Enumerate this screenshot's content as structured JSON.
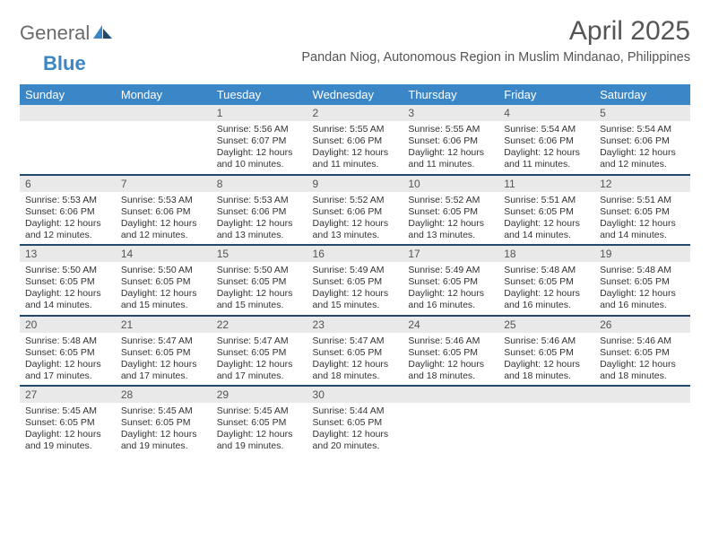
{
  "brand": {
    "part1": "General",
    "part2": "Blue",
    "icon_color": "#234a6d"
  },
  "title": "April 2025",
  "location": "Pandan Niog, Autonomous Region in Muslim Mindanao, Philippines",
  "colors": {
    "header_bg": "#3b86c6",
    "header_fg": "#ffffff",
    "daynum_bg": "#e9e9e9",
    "rule": "#234a6d",
    "text": "#333333"
  },
  "dow": [
    "Sunday",
    "Monday",
    "Tuesday",
    "Wednesday",
    "Thursday",
    "Friday",
    "Saturday"
  ],
  "weeks": [
    [
      null,
      null,
      {
        "n": "1",
        "sr": "5:56 AM",
        "ss": "6:07 PM",
        "d1": "12 hours",
        "d2": "and 10 minutes."
      },
      {
        "n": "2",
        "sr": "5:55 AM",
        "ss": "6:06 PM",
        "d1": "12 hours",
        "d2": "and 11 minutes."
      },
      {
        "n": "3",
        "sr": "5:55 AM",
        "ss": "6:06 PM",
        "d1": "12 hours",
        "d2": "and 11 minutes."
      },
      {
        "n": "4",
        "sr": "5:54 AM",
        "ss": "6:06 PM",
        "d1": "12 hours",
        "d2": "and 11 minutes."
      },
      {
        "n": "5",
        "sr": "5:54 AM",
        "ss": "6:06 PM",
        "d1": "12 hours",
        "d2": "and 12 minutes."
      }
    ],
    [
      {
        "n": "6",
        "sr": "5:53 AM",
        "ss": "6:06 PM",
        "d1": "12 hours",
        "d2": "and 12 minutes."
      },
      {
        "n": "7",
        "sr": "5:53 AM",
        "ss": "6:06 PM",
        "d1": "12 hours",
        "d2": "and 12 minutes."
      },
      {
        "n": "8",
        "sr": "5:53 AM",
        "ss": "6:06 PM",
        "d1": "12 hours",
        "d2": "and 13 minutes."
      },
      {
        "n": "9",
        "sr": "5:52 AM",
        "ss": "6:06 PM",
        "d1": "12 hours",
        "d2": "and 13 minutes."
      },
      {
        "n": "10",
        "sr": "5:52 AM",
        "ss": "6:05 PM",
        "d1": "12 hours",
        "d2": "and 13 minutes."
      },
      {
        "n": "11",
        "sr": "5:51 AM",
        "ss": "6:05 PM",
        "d1": "12 hours",
        "d2": "and 14 minutes."
      },
      {
        "n": "12",
        "sr": "5:51 AM",
        "ss": "6:05 PM",
        "d1": "12 hours",
        "d2": "and 14 minutes."
      }
    ],
    [
      {
        "n": "13",
        "sr": "5:50 AM",
        "ss": "6:05 PM",
        "d1": "12 hours",
        "d2": "and 14 minutes."
      },
      {
        "n": "14",
        "sr": "5:50 AM",
        "ss": "6:05 PM",
        "d1": "12 hours",
        "d2": "and 15 minutes."
      },
      {
        "n": "15",
        "sr": "5:50 AM",
        "ss": "6:05 PM",
        "d1": "12 hours",
        "d2": "and 15 minutes."
      },
      {
        "n": "16",
        "sr": "5:49 AM",
        "ss": "6:05 PM",
        "d1": "12 hours",
        "d2": "and 15 minutes."
      },
      {
        "n": "17",
        "sr": "5:49 AM",
        "ss": "6:05 PM",
        "d1": "12 hours",
        "d2": "and 16 minutes."
      },
      {
        "n": "18",
        "sr": "5:48 AM",
        "ss": "6:05 PM",
        "d1": "12 hours",
        "d2": "and 16 minutes."
      },
      {
        "n": "19",
        "sr": "5:48 AM",
        "ss": "6:05 PM",
        "d1": "12 hours",
        "d2": "and 16 minutes."
      }
    ],
    [
      {
        "n": "20",
        "sr": "5:48 AM",
        "ss": "6:05 PM",
        "d1": "12 hours",
        "d2": "and 17 minutes."
      },
      {
        "n": "21",
        "sr": "5:47 AM",
        "ss": "6:05 PM",
        "d1": "12 hours",
        "d2": "and 17 minutes."
      },
      {
        "n": "22",
        "sr": "5:47 AM",
        "ss": "6:05 PM",
        "d1": "12 hours",
        "d2": "and 17 minutes."
      },
      {
        "n": "23",
        "sr": "5:47 AM",
        "ss": "6:05 PM",
        "d1": "12 hours",
        "d2": "and 18 minutes."
      },
      {
        "n": "24",
        "sr": "5:46 AM",
        "ss": "6:05 PM",
        "d1": "12 hours",
        "d2": "and 18 minutes."
      },
      {
        "n": "25",
        "sr": "5:46 AM",
        "ss": "6:05 PM",
        "d1": "12 hours",
        "d2": "and 18 minutes."
      },
      {
        "n": "26",
        "sr": "5:46 AM",
        "ss": "6:05 PM",
        "d1": "12 hours",
        "d2": "and 18 minutes."
      }
    ],
    [
      {
        "n": "27",
        "sr": "5:45 AM",
        "ss": "6:05 PM",
        "d1": "12 hours",
        "d2": "and 19 minutes."
      },
      {
        "n": "28",
        "sr": "5:45 AM",
        "ss": "6:05 PM",
        "d1": "12 hours",
        "d2": "and 19 minutes."
      },
      {
        "n": "29",
        "sr": "5:45 AM",
        "ss": "6:05 PM",
        "d1": "12 hours",
        "d2": "and 19 minutes."
      },
      {
        "n": "30",
        "sr": "5:44 AM",
        "ss": "6:05 PM",
        "d1": "12 hours",
        "d2": "and 20 minutes."
      },
      null,
      null,
      null
    ]
  ],
  "labels": {
    "sunrise": "Sunrise: ",
    "sunset": "Sunset: ",
    "daylight": "Daylight: "
  }
}
